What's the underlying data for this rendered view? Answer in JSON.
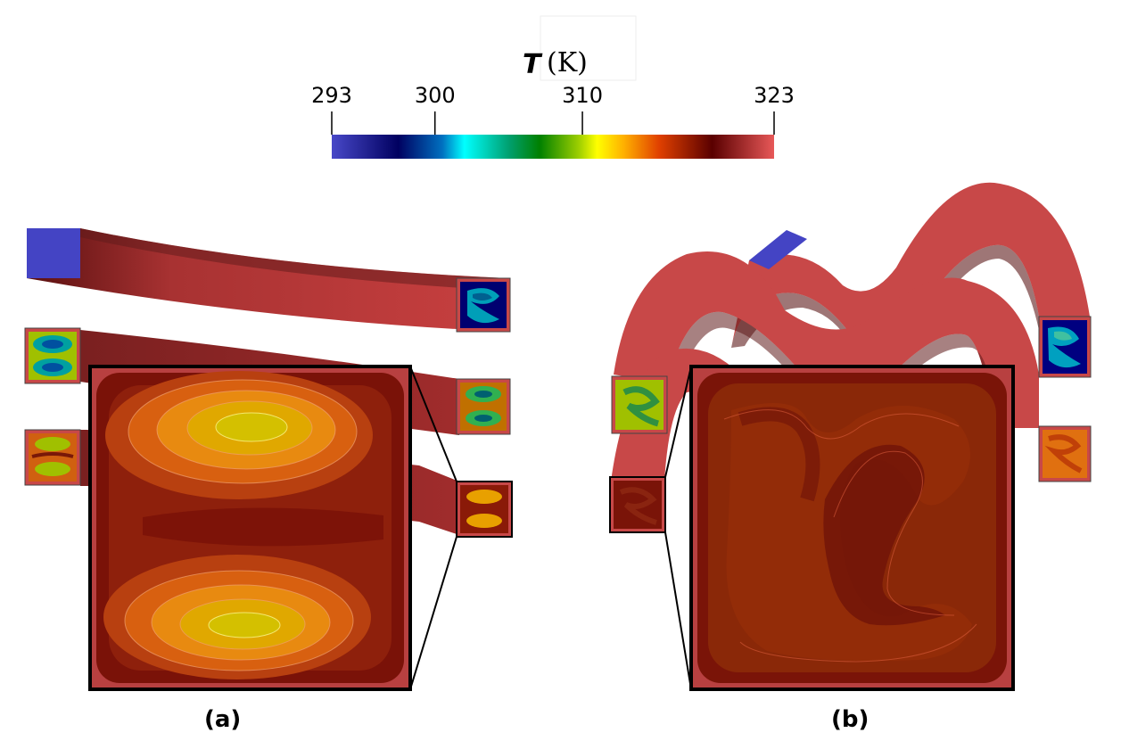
{
  "colorbar": {
    "title_var": "T",
    "title_unit": "(K)",
    "min": 293,
    "max": 323,
    "ticks": [
      {
        "value": 293,
        "label": "293"
      },
      {
        "value": 300,
        "label": "300"
      },
      {
        "value": 310,
        "label": "310"
      },
      {
        "value": 323,
        "label": "323"
      }
    ],
    "colors": [
      "#4646c8",
      "#000080",
      "#00ffff",
      "#008000",
      "#ffff00",
      "#ff6000",
      "#6b0000",
      "#e05050"
    ]
  },
  "panels": [
    {
      "label": "(a)"
    },
    {
      "label": "(b)"
    }
  ]
}
